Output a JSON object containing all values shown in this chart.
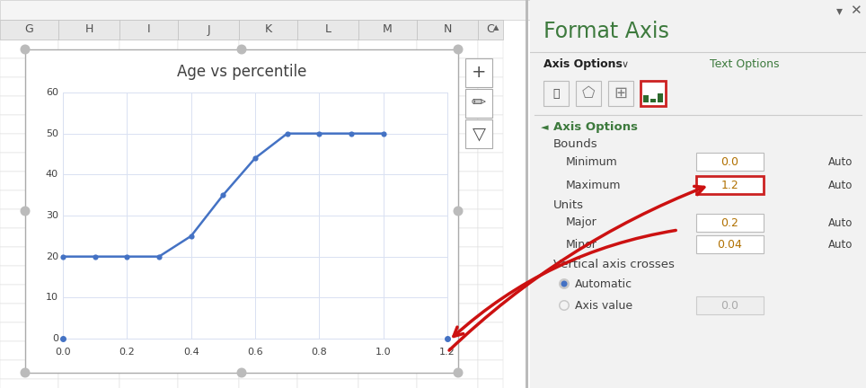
{
  "title": "Age vs percentile",
  "x_data": [
    0.0,
    0.1,
    0.2,
    0.3,
    0.4,
    0.5,
    0.6,
    0.7,
    0.8,
    0.9,
    1.0
  ],
  "y_data": [
    20,
    20,
    20,
    20,
    25,
    35,
    44,
    50,
    50,
    50,
    50
  ],
  "xlim": [
    0.0,
    1.2
  ],
  "ylim": [
    0,
    60
  ],
  "xticks": [
    0.0,
    0.2,
    0.4,
    0.6,
    0.8,
    1.0,
    1.2
  ],
  "yticks": [
    0,
    10,
    20,
    30,
    40,
    50,
    60
  ],
  "line_color": "#4472C4",
  "marker_color": "#4472C4",
  "col_headers": [
    "G",
    "H",
    "I",
    "J",
    "K",
    "L",
    "M",
    "N",
    "C"
  ],
  "panel_title": "Format Axis",
  "panel_title_color": "#4E7C4E",
  "axis_options_label": "Axis Options",
  "text_options_label": "Text Options",
  "bounds_label": "Bounds",
  "minimum_label": "Minimum",
  "maximum_label": "Maximum",
  "units_label": "Units",
  "major_label": "Major",
  "minor_label": "Minor",
  "vac_label": "Vertical axis crosses",
  "auto_label": "Automatic",
  "axis_value_label": "Axis value",
  "min_value": "0.0",
  "max_value": "1.2",
  "major_value": "0.2",
  "minor_value": "0.04",
  "auto_value": "0.0"
}
